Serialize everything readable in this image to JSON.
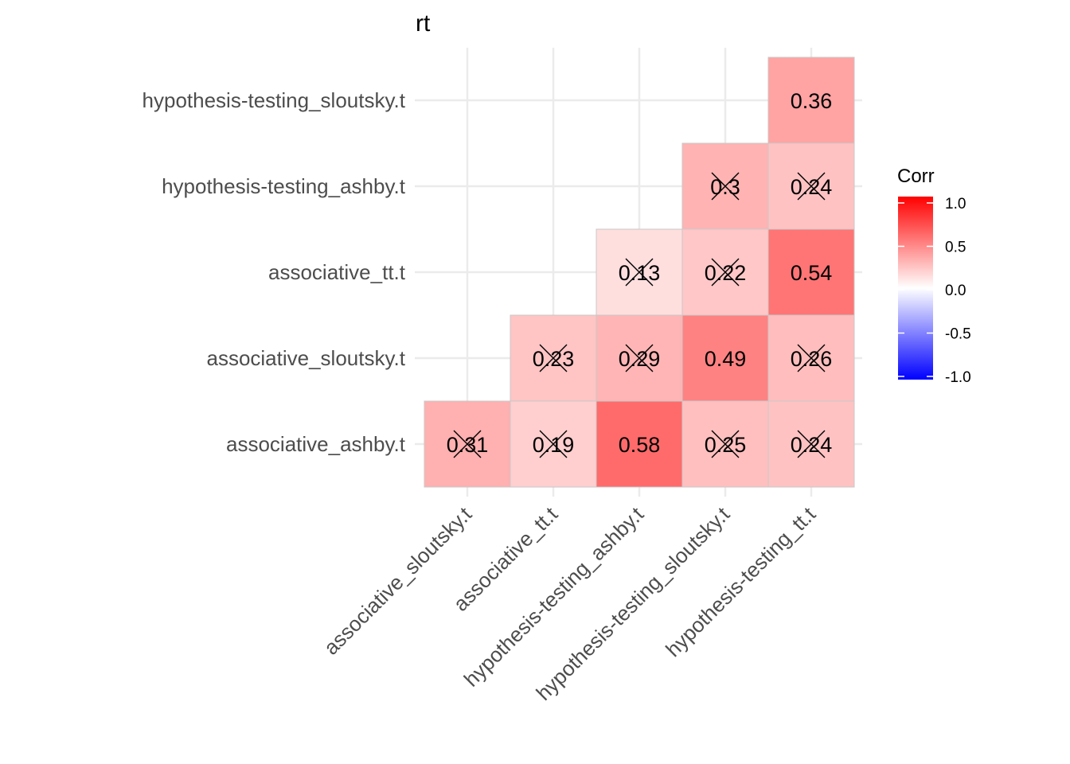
{
  "chart_data": {
    "type": "heatmap",
    "title": "rt",
    "x_categories": [
      "associative_sloutsky.t",
      "associative_tt.t",
      "hypothesis-testing_ashby.t",
      "hypothesis-testing_sloutsky.t",
      "hypothesis-testing_tt.t"
    ],
    "y_categories": [
      "associative_ashby.t",
      "associative_sloutsky.t",
      "associative_tt.t",
      "hypothesis-testing_ashby.t",
      "hypothesis-testing_sloutsky.t"
    ],
    "cells": [
      {
        "x": "associative_sloutsky.t",
        "y": "associative_ashby.t",
        "value": 0.31,
        "label": "0.31",
        "insignificant": true
      },
      {
        "x": "associative_tt.t",
        "y": "associative_ashby.t",
        "value": 0.19,
        "label": "0.19",
        "insignificant": true
      },
      {
        "x": "hypothesis-testing_ashby.t",
        "y": "associative_ashby.t",
        "value": 0.58,
        "label": "0.58",
        "insignificant": false
      },
      {
        "x": "hypothesis-testing_sloutsky.t",
        "y": "associative_ashby.t",
        "value": 0.25,
        "label": "0.25",
        "insignificant": true
      },
      {
        "x": "hypothesis-testing_tt.t",
        "y": "associative_ashby.t",
        "value": 0.24,
        "label": "0.24",
        "insignificant": true
      },
      {
        "x": "associative_tt.t",
        "y": "associative_sloutsky.t",
        "value": 0.23,
        "label": "0.23",
        "insignificant": true
      },
      {
        "x": "hypothesis-testing_ashby.t",
        "y": "associative_sloutsky.t",
        "value": 0.29,
        "label": "0.29",
        "insignificant": true
      },
      {
        "x": "hypothesis-testing_sloutsky.t",
        "y": "associative_sloutsky.t",
        "value": 0.49,
        "label": "0.49",
        "insignificant": false
      },
      {
        "x": "hypothesis-testing_tt.t",
        "y": "associative_sloutsky.t",
        "value": 0.26,
        "label": "0.26",
        "insignificant": true
      },
      {
        "x": "hypothesis-testing_ashby.t",
        "y": "associative_tt.t",
        "value": 0.13,
        "label": "0.13",
        "insignificant": true
      },
      {
        "x": "hypothesis-testing_sloutsky.t",
        "y": "associative_tt.t",
        "value": 0.22,
        "label": "0.22",
        "insignificant": true
      },
      {
        "x": "hypothesis-testing_tt.t",
        "y": "associative_tt.t",
        "value": 0.54,
        "label": "0.54",
        "insignificant": false
      },
      {
        "x": "hypothesis-testing_sloutsky.t",
        "y": "hypothesis-testing_ashby.t",
        "value": 0.3,
        "label": "0.3",
        "insignificant": true
      },
      {
        "x": "hypothesis-testing_tt.t",
        "y": "hypothesis-testing_ashby.t",
        "value": 0.24,
        "label": "0.24",
        "insignificant": true
      },
      {
        "x": "hypothesis-testing_tt.t",
        "y": "hypothesis-testing_sloutsky.t",
        "value": 0.36,
        "label": "0.36",
        "insignificant": false
      }
    ],
    "legend": {
      "title": "Corr",
      "placement": "right",
      "range": [
        -1.0,
        1.0
      ],
      "ticks": [
        1.0,
        0.5,
        0.0,
        -0.5,
        -1.0
      ],
      "tick_labels": [
        "1.0",
        "0.5",
        "0.0",
        "-0.5",
        "-1.0"
      ]
    },
    "colors": {
      "low": "#0000FF",
      "mid": "#FFFFFF",
      "high": "#FF0000",
      "grid": "#EBEBEB",
      "cell_border": "#C8C8C8"
    },
    "grid": true,
    "x_tick_rotation_deg": 45
  }
}
